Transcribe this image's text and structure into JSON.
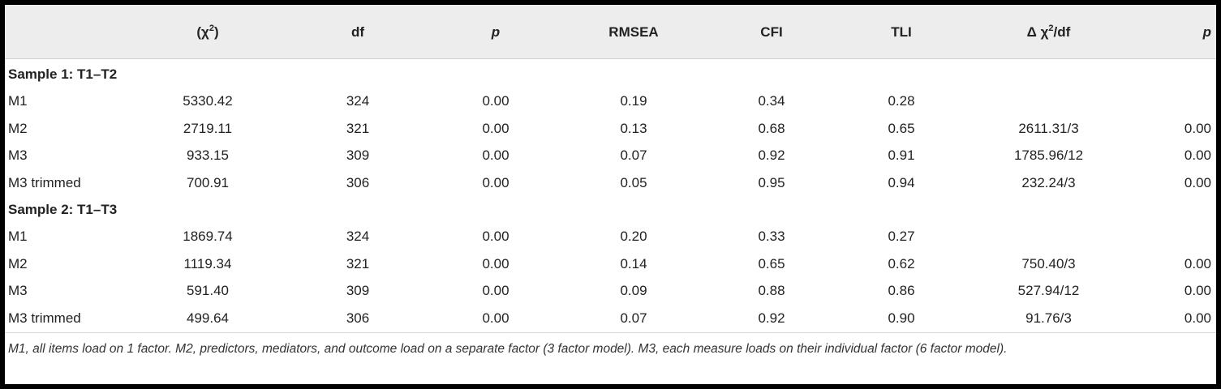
{
  "header": {
    "col0": "",
    "chi_prefix": "(χ",
    "chi_sup": "2",
    "chi_suffix": ")",
    "df": "df",
    "p": "p",
    "rmsea": "RMSEA",
    "cfi": "CFI",
    "tli": "TLI",
    "delta_prefix": "Δ χ",
    "delta_sup": "2",
    "delta_suffix": "/df",
    "p2": "p"
  },
  "sections": [
    {
      "title": "Sample 1: T1–T2",
      "rows": [
        {
          "model": "M1",
          "chi": "5330.42",
          "df": "324",
          "p": "0.00",
          "rmsea": "0.19",
          "cfi": "0.34",
          "tli": "0.28",
          "delta": "",
          "p2": ""
        },
        {
          "model": "M2",
          "chi": "2719.11",
          "df": "321",
          "p": "0.00",
          "rmsea": "0.13",
          "cfi": "0.68",
          "tli": "0.65",
          "delta": "2611.31/3",
          "p2": "0.00"
        },
        {
          "model": "M3",
          "chi": "933.15",
          "df": "309",
          "p": "0.00",
          "rmsea": "0.07",
          "cfi": "0.92",
          "tli": "0.91",
          "delta": "1785.96/12",
          "p2": "0.00"
        },
        {
          "model": "M3 trimmed",
          "chi": "700.91",
          "df": "306",
          "p": "0.00",
          "rmsea": "0.05",
          "cfi": "0.95",
          "tli": "0.94",
          "delta": "232.24/3",
          "p2": "0.00"
        }
      ]
    },
    {
      "title": "Sample 2: T1–T3",
      "rows": [
        {
          "model": "M1",
          "chi": "1869.74",
          "df": "324",
          "p": "0.00",
          "rmsea": "0.20",
          "cfi": "0.33",
          "tli": "0.27",
          "delta": "",
          "p2": ""
        },
        {
          "model": "M2",
          "chi": "1119.34",
          "df": "321",
          "p": "0.00",
          "rmsea": "0.14",
          "cfi": "0.65",
          "tli": "0.62",
          "delta": "750.40/3",
          "p2": "0.00"
        },
        {
          "model": "M3",
          "chi": "591.40",
          "df": "309",
          "p": "0.00",
          "rmsea": "0.09",
          "cfi": "0.88",
          "tli": "0.86",
          "delta": "527.94/12",
          "p2": "0.00"
        },
        {
          "model": "M3 trimmed",
          "chi": "499.64",
          "df": "306",
          "p": "0.00",
          "rmsea": "0.07",
          "cfi": "0.92",
          "tli": "0.90",
          "delta": "91.76/3",
          "p2": "0.00"
        }
      ]
    }
  ],
  "footnote": "M1, all items load on 1 factor. M2, predictors, mediators, and outcome load on a separate factor (3 factor model). M3, each measure loads on their individual factor (6 factor model)."
}
